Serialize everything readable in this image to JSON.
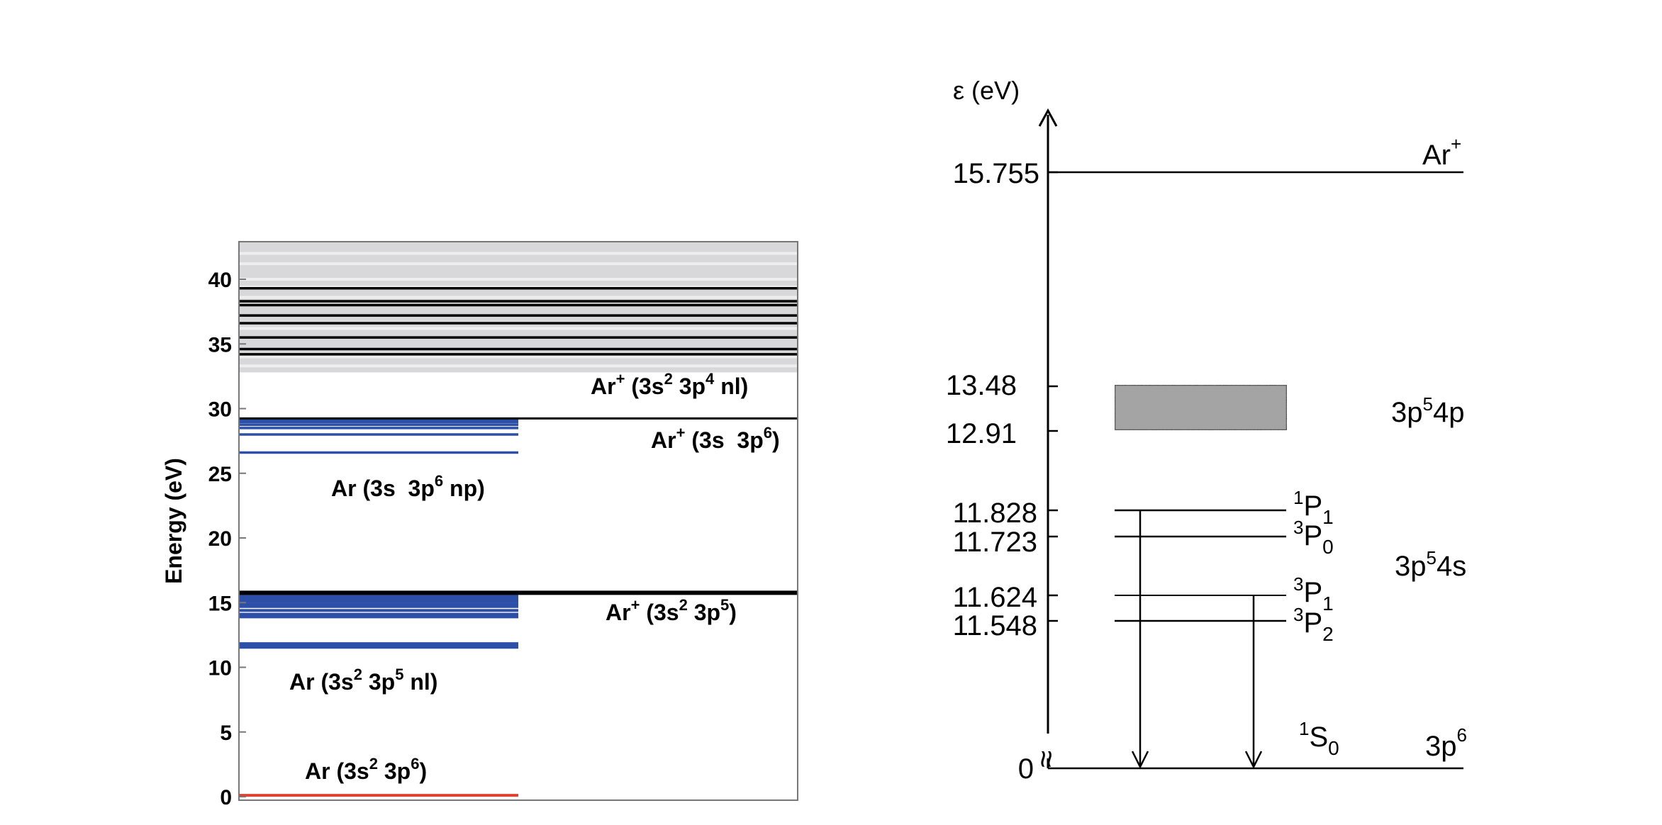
{
  "colors": {
    "continuum": "#d8d8da",
    "continuum_line": "#eeeeef",
    "black": "#000000",
    "blue": "#2d4fa8",
    "red": "#e0412e",
    "band": "#a9a9a9"
  },
  "left_chart": {
    "ylabel": "Energy (eV)",
    "ylim": [
      0,
      43
    ],
    "ticks": [
      "0",
      "5",
      "10",
      "15",
      "20",
      "25",
      "30",
      "35",
      "40"
    ],
    "tick_values": [
      0,
      5,
      10,
      15,
      20,
      25,
      30,
      35,
      40
    ],
    "continuum_range": [
      32.8,
      43
    ],
    "continuum_lines": [
      33.3,
      34.0,
      36.2,
      38.6,
      39.4,
      40.0,
      41.2,
      42.0
    ],
    "ion_lines_black": [
      34.2,
      34.6,
      35.5,
      36.6,
      37.2,
      38.0,
      38.3,
      39.3
    ],
    "threshold_lines": [
      {
        "label_id": "ar_plus_3s_3p6",
        "energy": 29.24
      },
      {
        "label_id": "ar_plus_3s2_3p5",
        "energy": 15.76
      }
    ],
    "blue_series_np": [
      26.6,
      28.0,
      28.5,
      28.75,
      28.95,
      29.1
    ],
    "blue_series_nl": [
      11.55,
      11.72,
      11.83,
      13.9,
      14.1,
      14.4,
      14.7,
      14.9,
      15.1,
      15.25,
      15.4,
      15.5,
      15.6,
      15.7
    ],
    "ground": 0.05,
    "labels": {
      "ar_plus_3s2_3p4_nl": {
        "prefix": "Ar",
        "sup1": "+",
        "mid1": " (3s",
        "sup2": "2",
        "mid2": " 3p",
        "sup3": "4",
        "end": " nl)"
      },
      "ar_plus_3s_3p6": {
        "prefix": "Ar",
        "sup1": "+",
        "mid1": " (3s  3p",
        "sup2": "6",
        "end": ")"
      },
      "ar_3s_3p6_np": {
        "prefix": "Ar (3s  3p",
        "sup1": "6",
        "end": " np)"
      },
      "ar_plus_3s2_3p5": {
        "prefix": "Ar",
        "sup1": "+",
        "mid1": " (3s",
        "sup2": "2",
        "mid2": " 3p",
        "sup3": "5",
        "end": ")"
      },
      "ar_3s2_3p5_nl": {
        "prefix": "Ar (3s",
        "sup1": "2",
        "mid1": " 3p",
        "sup2": "5",
        "end": " nl)"
      },
      "ar_3s2_3p6": {
        "prefix": "Ar (3s",
        "sup1": "2",
        "mid1": " 3p",
        "sup2": "6",
        "end": ")"
      }
    }
  },
  "right_chart": {
    "axis_label": "ε (eV)",
    "levels": [
      {
        "id": "ar_plus",
        "value": "15.755",
        "energy": 15.755
      },
      {
        "id": "band_top",
        "value": "13.48",
        "energy": 13.48
      },
      {
        "id": "band_bottom",
        "value": "12.91",
        "energy": 12.91
      },
      {
        "id": "1P1",
        "value": "11.828",
        "energy": 11.828
      },
      {
        "id": "3P0",
        "value": "11.723",
        "energy": 11.723
      },
      {
        "id": "3P1",
        "value": "11.624",
        "energy": 11.624
      },
      {
        "id": "3P2",
        "value": "11.548",
        "energy": 11.548
      },
      {
        "id": "ground",
        "value": "0",
        "energy": 0
      }
    ],
    "ion_label": {
      "base": "Ar",
      "sup": "+"
    },
    "band_config": {
      "pre": "3p",
      "sup": "5",
      "post": "4p"
    },
    "s_config": {
      "pre": "3p",
      "sup": "5",
      "post": "4s"
    },
    "ground_config": {
      "pre": "3p",
      "sup": "6"
    },
    "terms": [
      {
        "id": "1P1",
        "sup": "1",
        "base": "P",
        "sub": "1"
      },
      {
        "id": "3P0",
        "sup": "3",
        "base": "P",
        "sub": "0"
      },
      {
        "id": "3P1",
        "sup": "3",
        "base": "P",
        "sub": "1"
      },
      {
        "id": "3P2",
        "sup": "3",
        "base": "P",
        "sub": "2"
      },
      {
        "id": "1S0",
        "sup": "1",
        "base": "S",
        "sub": "0"
      }
    ],
    "axis_break_symbol": "≈"
  }
}
